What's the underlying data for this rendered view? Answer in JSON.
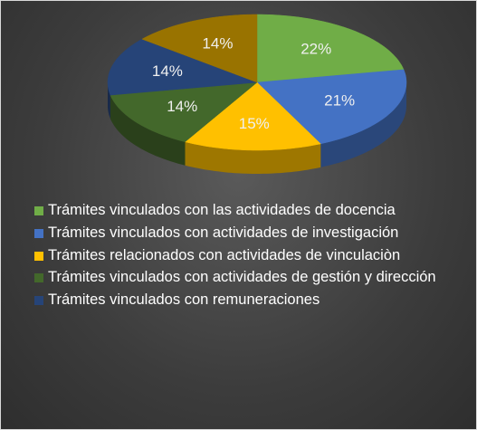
{
  "chart_data": {
    "type": "pie",
    "categories": [
      "Trámites vinculados con las actividades de docencia",
      "Trámites vinculados con actividades de investigación",
      "Trámites relacionados con actividades de vinculaciòn",
      "Trámites vinculados con actividades de gestión y dirección",
      "Trámites vinculados con remuneraciones",
      null
    ],
    "values": [
      22,
      21,
      15,
      14,
      14,
      14
    ],
    "value_labels": [
      "22%",
      "21%",
      "15%",
      "14%",
      "14%",
      "14%"
    ],
    "colors": [
      "#70ad47",
      "#4472c4",
      "#ffc000",
      "#43682b",
      "#264478",
      "#997300"
    ],
    "legend": "bottom"
  }
}
